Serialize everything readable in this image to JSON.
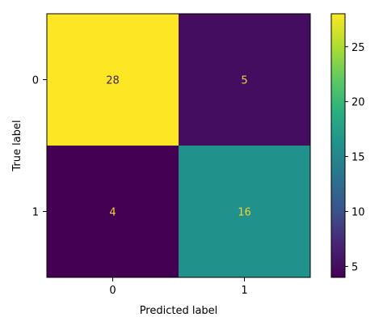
{
  "chart_data": {
    "type": "heatmap",
    "title": "",
    "xlabel": "Predicted label",
    "ylabel": "True label",
    "x_categories": [
      "0",
      "1"
    ],
    "y_categories": [
      "0",
      "1"
    ],
    "values": [
      [
        28,
        5
      ],
      [
        4,
        16
      ]
    ],
    "colormap": "viridis",
    "colorbar": {
      "vmin": 4,
      "vmax": 28,
      "ticks": [
        5,
        10,
        15,
        20,
        25
      ]
    },
    "grid": false
  }
}
